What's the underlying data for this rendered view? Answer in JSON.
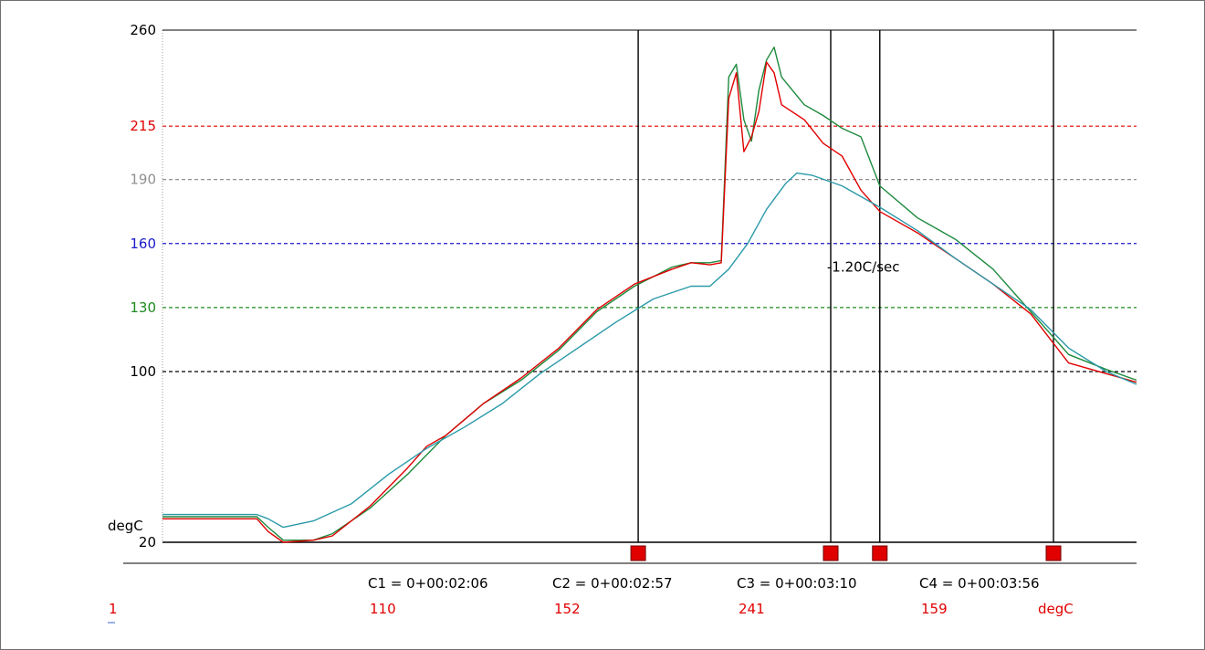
{
  "chart_data": {
    "type": "line",
    "y_unit": "degC",
    "ylim": [
      20,
      260
    ],
    "ticks": [
      {
        "value": 260,
        "label": "260",
        "color": "#000000",
        "dash": false
      },
      {
        "value": 215,
        "label": "215",
        "color": "#e00000",
        "dash": true
      },
      {
        "value": 190,
        "label": "190",
        "color": "#909090",
        "dash": true
      },
      {
        "value": 160,
        "label": "160",
        "color": "#1a1acc",
        "dash": true
      },
      {
        "value": 130,
        "label": "130",
        "color": "#1d8a1d",
        "dash": true
      },
      {
        "value": 100,
        "label": "100",
        "color": "#000000",
        "dash": true
      },
      {
        "value": 20,
        "label": "20",
        "color": "#000000",
        "dash": false
      }
    ],
    "x_unit": "seconds",
    "xlim": [
      0,
      258
    ],
    "series": [
      {
        "color": "#1e8a3e",
        "points": [
          [
            0,
            32
          ],
          [
            25,
            32
          ],
          [
            28,
            27
          ],
          [
            32,
            21
          ],
          [
            40,
            21
          ],
          [
            45,
            24
          ],
          [
            55,
            36
          ],
          [
            65,
            52
          ],
          [
            75,
            70
          ],
          [
            85,
            85
          ],
          [
            95,
            96
          ],
          [
            105,
            110
          ],
          [
            115,
            128
          ],
          [
            125,
            140
          ],
          [
            135,
            149
          ],
          [
            140,
            151
          ],
          [
            145,
            151
          ],
          [
            148,
            152
          ],
          [
            150,
            238
          ],
          [
            152,
            244
          ],
          [
            154,
            218
          ],
          [
            156,
            208
          ],
          [
            158,
            232
          ],
          [
            160,
            246
          ],
          [
            162,
            252
          ],
          [
            164,
            238
          ],
          [
            170,
            225
          ],
          [
            175,
            220
          ],
          [
            180,
            214
          ],
          [
            185,
            210
          ],
          [
            190,
            187
          ],
          [
            200,
            172
          ],
          [
            210,
            162
          ],
          [
            220,
            148
          ],
          [
            230,
            128
          ],
          [
            240,
            108
          ],
          [
            250,
            101
          ],
          [
            258,
            96
          ]
        ]
      },
      {
        "color": "#e00000",
        "points": [
          [
            0,
            31
          ],
          [
            25,
            31
          ],
          [
            28,
            25
          ],
          [
            32,
            20
          ],
          [
            40,
            21
          ],
          [
            45,
            23
          ],
          [
            55,
            37
          ],
          [
            65,
            55
          ],
          [
            70,
            65
          ],
          [
            75,
            70
          ],
          [
            85,
            85
          ],
          [
            95,
            97
          ],
          [
            105,
            111
          ],
          [
            115,
            129
          ],
          [
            125,
            141
          ],
          [
            135,
            148
          ],
          [
            140,
            151
          ],
          [
            145,
            150
          ],
          [
            148,
            151
          ],
          [
            150,
            228
          ],
          [
            152,
            240
          ],
          [
            154,
            203
          ],
          [
            156,
            210
          ],
          [
            158,
            222
          ],
          [
            160,
            245
          ],
          [
            162,
            240
          ],
          [
            164,
            225
          ],
          [
            170,
            218
          ],
          [
            175,
            207
          ],
          [
            180,
            201
          ],
          [
            185,
            185
          ],
          [
            190,
            175
          ],
          [
            200,
            165
          ],
          [
            210,
            153
          ],
          [
            220,
            141
          ],
          [
            230,
            127
          ],
          [
            240,
            104
          ],
          [
            250,
            99
          ],
          [
            258,
            95
          ]
        ]
      },
      {
        "color": "#2a9aa8",
        "points": [
          [
            0,
            33
          ],
          [
            25,
            33
          ],
          [
            28,
            31
          ],
          [
            32,
            27
          ],
          [
            40,
            30
          ],
          [
            50,
            38
          ],
          [
            60,
            52
          ],
          [
            70,
            64
          ],
          [
            80,
            74
          ],
          [
            90,
            85
          ],
          [
            100,
            99
          ],
          [
            110,
            111
          ],
          [
            120,
            123
          ],
          [
            130,
            134
          ],
          [
            140,
            140
          ],
          [
            145,
            140
          ],
          [
            150,
            148
          ],
          [
            155,
            160
          ],
          [
            160,
            176
          ],
          [
            165,
            188
          ],
          [
            168,
            193
          ],
          [
            172,
            192
          ],
          [
            180,
            187
          ],
          [
            190,
            177
          ],
          [
            200,
            166
          ],
          [
            210,
            153
          ],
          [
            220,
            141
          ],
          [
            230,
            129
          ],
          [
            240,
            111
          ],
          [
            250,
            100
          ],
          [
            258,
            94
          ]
        ]
      }
    ],
    "annotation": {
      "text": "-1.20C/sec",
      "x": 176,
      "y": 149
    },
    "cursors": [
      {
        "id": "C1",
        "x": 126,
        "label": "C1 = 0+00:02:06",
        "reading": "110"
      },
      {
        "id": "C2",
        "x": 177,
        "label": "C2 = 0+00:02:57",
        "reading": "152"
      },
      {
        "id": "C3",
        "x": 190,
        "label": "C3 = 0+00:03:10",
        "reading": "241"
      },
      {
        "id": "C4",
        "x": 236,
        "label": "C4 = 0+00:03:56",
        "reading": "159"
      }
    ],
    "channel_label": "1",
    "reading_unit": "degC"
  }
}
